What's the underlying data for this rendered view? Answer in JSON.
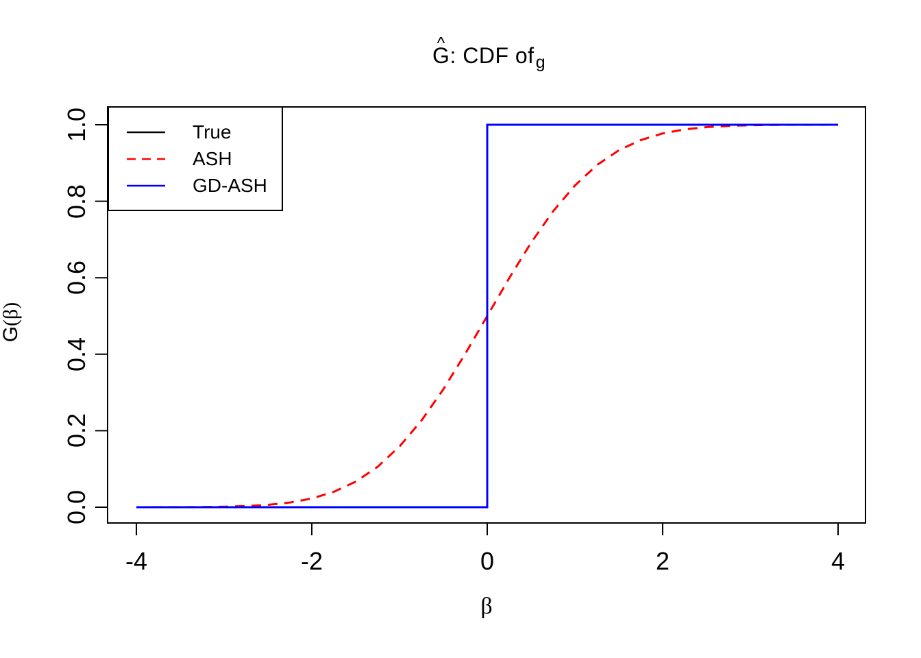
{
  "page": {
    "background": "#ffffff"
  },
  "chart_data": {
    "type": "line",
    "title": "Ĝ: CDF of ĝ",
    "title_parts": {
      "hat_char": "^",
      "hat1_base": "G",
      "middle": ": CDF of ",
      "hat2_base": "g"
    },
    "xlabel": "β",
    "ylabel": "Ĝ(β)",
    "ylabel_parts": {
      "hat_char": "^",
      "hat_base": "G",
      "rest": "(β)"
    },
    "xlim": [
      -4,
      4
    ],
    "ylim": [
      0,
      1
    ],
    "x_ticks": [
      -4,
      -2,
      0,
      2,
      4
    ],
    "x_tick_labels": [
      "-4",
      "-2",
      "0",
      "2",
      "4"
    ],
    "y_ticks": [
      0,
      0.2,
      0.4,
      0.6,
      0.8,
      1
    ],
    "y_tick_labels": [
      "0.0",
      "0.2",
      "0.4",
      "0.6",
      "0.8",
      "1.0"
    ],
    "grid": false,
    "frame_color": "#000000",
    "legend_position": "topleft",
    "series": [
      {
        "name": "True",
        "color": "#000000",
        "style": "solid",
        "x": [
          -4,
          0,
          0,
          4
        ],
        "y": [
          0,
          0,
          1,
          1
        ]
      },
      {
        "name": "ASH",
        "color": "#ff0000",
        "style": "dashed",
        "x": [
          -4,
          -3.75,
          -3.5,
          -3.25,
          -3,
          -2.75,
          -2.5,
          -2.25,
          -2,
          -1.75,
          -1.5,
          -1.25,
          -1,
          -0.75,
          -0.5,
          -0.25,
          0,
          0.25,
          0.5,
          0.75,
          1,
          1.25,
          1.5,
          1.75,
          2,
          2.25,
          2.5,
          2.75,
          3,
          3.25,
          3.5,
          3.75,
          4
        ],
        "y": [
          0.0,
          0.0001,
          0.0002,
          0.0006,
          0.0013,
          0.003,
          0.0062,
          0.0122,
          0.0228,
          0.0401,
          0.0668,
          0.1056,
          0.1587,
          0.2266,
          0.3085,
          0.4013,
          0.5,
          0.5987,
          0.6915,
          0.7734,
          0.8413,
          0.8944,
          0.9332,
          0.9599,
          0.9772,
          0.9878,
          0.9938,
          0.997,
          0.9987,
          0.9994,
          0.9998,
          0.9999,
          1.0
        ]
      },
      {
        "name": "GD-ASH",
        "color": "#0000ff",
        "style": "solid",
        "x": [
          -4,
          0,
          0,
          4
        ],
        "y": [
          0,
          0,
          1,
          1
        ]
      }
    ]
  }
}
